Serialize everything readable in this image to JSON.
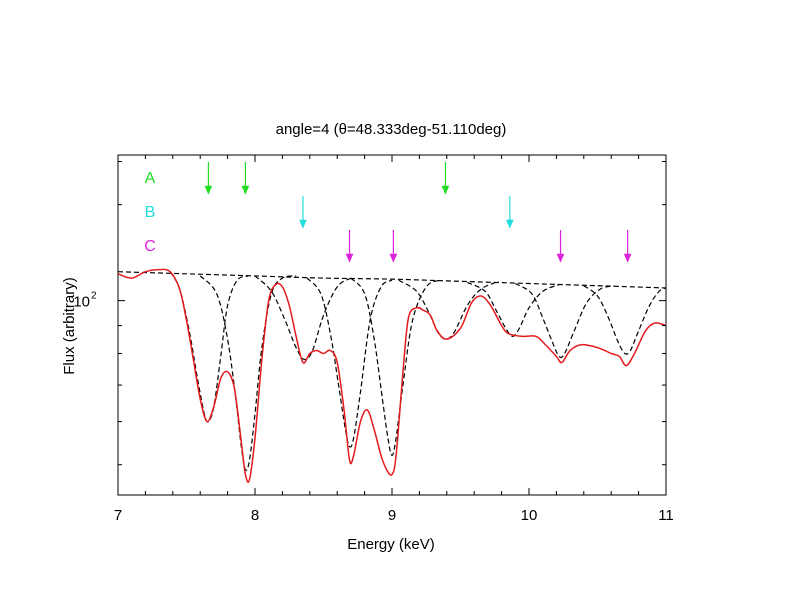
{
  "chart_data": {
    "type": "line",
    "title": "angle=4 (θ=48.333deg-51.110deg)",
    "xlabel": "Energy (keV)",
    "ylabel": "Flux (arbitrary)",
    "xlim": [
      7,
      11
    ],
    "ylim": [
      44,
      185
    ],
    "yscale": "log",
    "x_ticks": [
      {
        "value": 7,
        "label": "7"
      },
      {
        "value": 8,
        "label": "8"
      },
      {
        "value": 9,
        "label": "9"
      },
      {
        "value": 10,
        "label": "10"
      },
      {
        "value": 11,
        "label": "11"
      }
    ],
    "y_ticks": [
      {
        "value": 100,
        "base": "10",
        "exponent": "2"
      }
    ],
    "grid": false,
    "series": [
      {
        "color": "#e41a1c",
        "style": "solid",
        "points": [
          [
            7.0,
            112
          ],
          [
            7.1,
            110
          ],
          [
            7.2,
            113
          ],
          [
            7.3,
            114
          ],
          [
            7.38,
            113
          ],
          [
            7.45,
            105
          ],
          [
            7.5,
            92
          ],
          [
            7.55,
            78
          ],
          [
            7.6,
            66
          ],
          [
            7.65,
            60
          ],
          [
            7.7,
            64
          ],
          [
            7.75,
            72
          ],
          [
            7.8,
            74
          ],
          [
            7.85,
            69
          ],
          [
            7.9,
            55
          ],
          [
            7.93,
            48
          ],
          [
            7.96,
            47
          ],
          [
            8.0,
            56
          ],
          [
            8.05,
            78
          ],
          [
            8.1,
            100
          ],
          [
            8.15,
            107
          ],
          [
            8.2,
            106
          ],
          [
            8.25,
            98
          ],
          [
            8.3,
            86
          ],
          [
            8.35,
            77
          ],
          [
            8.4,
            80
          ],
          [
            8.45,
            81
          ],
          [
            8.5,
            80
          ],
          [
            8.55,
            81
          ],
          [
            8.6,
            77
          ],
          [
            8.65,
            63
          ],
          [
            8.69,
            51
          ],
          [
            8.72,
            52
          ],
          [
            8.77,
            60
          ],
          [
            8.82,
            63
          ],
          [
            8.87,
            58
          ],
          [
            8.92,
            52
          ],
          [
            8.96,
            49
          ],
          [
            9.0,
            48
          ],
          [
            9.03,
            52
          ],
          [
            9.08,
            74
          ],
          [
            9.12,
            93
          ],
          [
            9.18,
            97
          ],
          [
            9.23,
            96
          ],
          [
            9.28,
            94
          ],
          [
            9.33,
            88
          ],
          [
            9.4,
            85
          ],
          [
            9.5,
            89
          ],
          [
            9.58,
            99
          ],
          [
            9.65,
            102
          ],
          [
            9.72,
            98
          ],
          [
            9.8,
            90
          ],
          [
            9.85,
            87
          ],
          [
            9.95,
            86
          ],
          [
            10.05,
            86
          ],
          [
            10.12,
            83
          ],
          [
            10.2,
            79
          ],
          [
            10.24,
            77
          ],
          [
            10.3,
            81
          ],
          [
            10.38,
            83
          ],
          [
            10.5,
            82
          ],
          [
            10.6,
            80
          ],
          [
            10.66,
            79
          ],
          [
            10.71,
            76
          ],
          [
            10.77,
            80
          ],
          [
            10.85,
            88
          ],
          [
            10.92,
            91
          ],
          [
            11.0,
            90
          ]
        ]
      },
      {
        "color": "#000000",
        "style": "dashed",
        "points": [
          [
            7.0,
            113
          ],
          [
            7.5,
            112
          ],
          [
            8.0,
            111
          ],
          [
            8.5,
            110
          ],
          [
            9.0,
            109.5
          ],
          [
            9.5,
            108.5
          ],
          [
            10.0,
            107.5
          ],
          [
            10.5,
            106.5
          ],
          [
            11.0,
            105.5
          ]
        ]
      },
      {
        "color": "#000000",
        "style": "dashed",
        "points": [
          [
            7.38,
            113
          ],
          [
            7.45,
            105
          ],
          [
            7.52,
            88
          ],
          [
            7.58,
            72
          ],
          [
            7.63,
            62
          ],
          [
            7.66,
            60
          ],
          [
            7.7,
            64
          ],
          [
            7.75,
            79
          ],
          [
            7.8,
            98
          ],
          [
            7.87,
            109
          ],
          [
            7.95,
            111
          ]
        ]
      },
      {
        "color": "#000000",
        "style": "dashed",
        "points": [
          [
            7.6,
            111
          ],
          [
            7.72,
            103
          ],
          [
            7.8,
            85
          ],
          [
            7.86,
            66
          ],
          [
            7.9,
            54
          ],
          [
            7.93,
            49
          ],
          [
            7.96,
            51
          ],
          [
            8.0,
            62
          ],
          [
            8.05,
            82
          ],
          [
            8.12,
            103
          ],
          [
            8.2,
            110
          ],
          [
            8.3,
            111
          ]
        ]
      },
      {
        "color": "#000000",
        "style": "dashed",
        "points": [
          [
            8.0,
            111
          ],
          [
            8.12,
            104
          ],
          [
            8.22,
            92
          ],
          [
            8.3,
            82
          ],
          [
            8.36,
            78
          ],
          [
            8.42,
            81
          ],
          [
            8.5,
            94
          ],
          [
            8.6,
            106
          ],
          [
            8.7,
            110
          ]
        ]
      },
      {
        "color": "#000000",
        "style": "dashed",
        "points": [
          [
            8.38,
            110
          ],
          [
            8.48,
            103
          ],
          [
            8.55,
            87
          ],
          [
            8.61,
            70
          ],
          [
            8.66,
            58
          ],
          [
            8.69,
            54
          ],
          [
            8.72,
            56
          ],
          [
            8.77,
            68
          ],
          [
            8.84,
            92
          ],
          [
            8.92,
            106
          ],
          [
            9.0,
            109
          ]
        ]
      },
      {
        "color": "#000000",
        "style": "dashed",
        "points": [
          [
            8.7,
            110
          ],
          [
            8.8,
            103
          ],
          [
            8.87,
            85
          ],
          [
            8.93,
            66
          ],
          [
            8.97,
            56
          ],
          [
            9.0,
            52
          ],
          [
            9.03,
            56
          ],
          [
            9.08,
            70
          ],
          [
            9.15,
            92
          ],
          [
            9.25,
            106
          ],
          [
            9.35,
            109
          ]
        ]
      },
      {
        "color": "#000000",
        "style": "dashed",
        "points": [
          [
            9.05,
            109
          ],
          [
            9.18,
            104
          ],
          [
            9.27,
            95
          ],
          [
            9.34,
            87
          ],
          [
            9.4,
            85
          ],
          [
            9.46,
            88
          ],
          [
            9.55,
            98
          ],
          [
            9.65,
            105
          ],
          [
            9.78,
            108.5
          ]
        ]
      },
      {
        "color": "#000000",
        "style": "dashed",
        "points": [
          [
            9.55,
            108
          ],
          [
            9.68,
            104
          ],
          [
            9.76,
            96
          ],
          [
            9.83,
            89
          ],
          [
            9.88,
            86
          ],
          [
            9.93,
            89
          ],
          [
            10.0,
            97
          ],
          [
            10.1,
            104
          ],
          [
            10.22,
            107
          ]
        ]
      },
      {
        "color": "#000000",
        "style": "dashed",
        "points": [
          [
            9.9,
            107.5
          ],
          [
            10.02,
            103
          ],
          [
            10.1,
            93
          ],
          [
            10.17,
            84
          ],
          [
            10.22,
            79
          ],
          [
            10.26,
            80
          ],
          [
            10.33,
            88
          ],
          [
            10.42,
            99
          ],
          [
            10.52,
            105
          ],
          [
            10.62,
            106.5
          ]
        ]
      },
      {
        "color": "#000000",
        "style": "dashed",
        "points": [
          [
            10.4,
            106.5
          ],
          [
            10.5,
            102
          ],
          [
            10.58,
            93
          ],
          [
            10.65,
            84
          ],
          [
            10.7,
            80
          ],
          [
            10.74,
            81
          ],
          [
            10.8,
            88
          ],
          [
            10.88,
            98
          ],
          [
            10.95,
            104
          ],
          [
            11.0,
            105.5
          ]
        ]
      }
    ],
    "annotations": {
      "groups": [
        {
          "label": "A",
          "color": "#22dd22",
          "arrow_x": [
            7.66,
            7.93,
            9.39
          ]
        },
        {
          "label": "B",
          "color": "#22dddd",
          "arrow_x": [
            8.35,
            9.86
          ]
        },
        {
          "label": "C",
          "color": "#dd22dd",
          "arrow_x": [
            8.69,
            9.01,
            10.23,
            10.72
          ]
        }
      ]
    }
  }
}
